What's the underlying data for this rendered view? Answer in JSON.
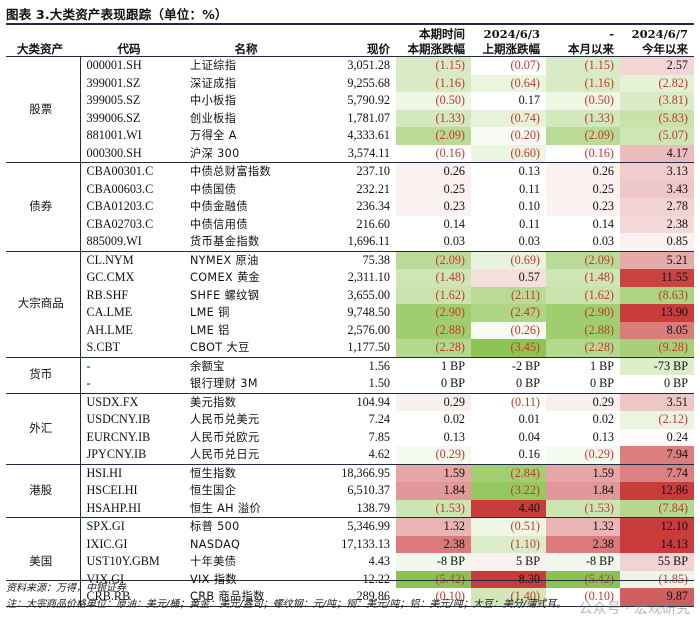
{
  "title": "图表 3.大类资产表现跟踪（单位：%）",
  "header": {
    "r1": [
      "",
      "",
      "",
      "",
      "本期时间",
      "2024/6/3",
      "-",
      "2024/6/7"
    ],
    "r2": [
      "大类资产",
      "代码",
      "名称",
      "现价",
      "本期涨跌幅",
      "上期涨跌幅",
      "本月以来",
      "今年以来"
    ]
  },
  "sections": [
    {
      "category": "股票",
      "rows": [
        {
          "code": "000001.SH",
          "name": "上证综指",
          "price": "3,051.28",
          "cur": "(1.15)",
          "prev": "(0.07)",
          "mtd": "(1.15)",
          "ytd": "2.57"
        },
        {
          "code": "399001.SZ",
          "name": "深证成指",
          "price": "9,255.68",
          "cur": "(1.16)",
          "prev": "(0.64)",
          "mtd": "(1.16)",
          "ytd": "(2.82)"
        },
        {
          "code": "399005.SZ",
          "name": "中小板指",
          "price": "5,790.92",
          "cur": "(0.50)",
          "prev": "0.17",
          "mtd": "(0.50)",
          "ytd": "(3.81)"
        },
        {
          "code": "399006.SZ",
          "name": "创业板指",
          "price": "1,781.07",
          "cur": "(1.33)",
          "prev": "(0.74)",
          "mtd": "(1.33)",
          "ytd": "(5.83)"
        },
        {
          "code": "881001.WI",
          "name": "万得全 A",
          "price": "4,333.61",
          "cur": "(2.09)",
          "prev": "(0.20)",
          "mtd": "(2.09)",
          "ytd": "(5.07)"
        },
        {
          "code": "000300.SH",
          "name": "沪深 300",
          "price": "3,574.11",
          "cur": "(0.16)",
          "prev": "(0.60)",
          "mtd": "(0.16)",
          "ytd": "4.17"
        }
      ]
    },
    {
      "category": "债券",
      "rows": [
        {
          "code": "CBA00301.C",
          "name": "中债总财富指数",
          "price": "237.10",
          "cur": "0.26",
          "prev": "0.13",
          "mtd": "0.26",
          "ytd": "3.13"
        },
        {
          "code": "CBA00603.C",
          "name": "中债国债",
          "price": "232.21",
          "cur": "0.25",
          "prev": "0.11",
          "mtd": "0.25",
          "ytd": "3.43"
        },
        {
          "code": "CBA01203.C",
          "name": "中债金融债",
          "price": "236.34",
          "cur": "0.23",
          "prev": "0.10",
          "mtd": "0.23",
          "ytd": "2.78"
        },
        {
          "code": "CBA02703.C",
          "name": "中债信用债",
          "price": "216.60",
          "cur": "0.14",
          "prev": "0.11",
          "mtd": "0.14",
          "ytd": "2.38"
        },
        {
          "code": "885009.WI",
          "name": "货币基金指数",
          "price": "1,696.11",
          "cur": "0.03",
          "prev": "0.03",
          "mtd": "0.03",
          "ytd": "0.85"
        }
      ]
    },
    {
      "category": "大宗商品",
      "rows": [
        {
          "code": "CL.NYM",
          "name": "NYMEX 原油",
          "price": "75.38",
          "cur": "(2.09)",
          "prev": "(0.69)",
          "mtd": "(2.09)",
          "ytd": "5.21"
        },
        {
          "code": "GC.CMX",
          "name": "COMEX 黄金",
          "price": "2,311.10",
          "cur": "(1.48)",
          "prev": "0.57",
          "mtd": "(1.48)",
          "ytd": "11.55"
        },
        {
          "code": "RB.SHF",
          "name": "SHFE 螺纹钢",
          "price": "3,655.00",
          "cur": "(1.62)",
          "prev": "(2.11)",
          "mtd": "(1.62)",
          "ytd": "(8.63)"
        },
        {
          "code": "CA.LME",
          "name": "LME 铜",
          "price": "9,748.50",
          "cur": "(2.90)",
          "prev": "(2.47)",
          "mtd": "(2.90)",
          "ytd": "13.90"
        },
        {
          "code": "AH.LME",
          "name": "LME 铝",
          "price": "2,576.00",
          "cur": "(2.88)",
          "prev": "(0.26)",
          "mtd": "(2.88)",
          "ytd": "8.05"
        },
        {
          "code": "S.CBT",
          "name": "CBOT 大豆",
          "price": "1,177.50",
          "cur": "(2.28)",
          "prev": "(3.45)",
          "mtd": "(2.28)",
          "ytd": "(9.28)"
        }
      ]
    },
    {
      "category": "货币",
      "rows": [
        {
          "code": "-",
          "name": "余额宝",
          "price": "1.56",
          "cur": "1 BP",
          "prev": "-2 BP",
          "mtd": "1 BP",
          "ytd": "-73 BP"
        },
        {
          "code": "-",
          "name": "银行理财 3M",
          "price": "1.50",
          "cur": "0 BP",
          "prev": "0 BP",
          "mtd": "0 BP",
          "ytd": "0 BP"
        }
      ]
    },
    {
      "category": "外汇",
      "rows": [
        {
          "code": "USDX.FX",
          "name": "美元指数",
          "price": "104.94",
          "cur": "0.29",
          "prev": "(0.11)",
          "mtd": "0.29",
          "ytd": "3.51"
        },
        {
          "code": "USDCNY.IB",
          "name": "人民币兑美元",
          "price": "7.24",
          "cur": "0.02",
          "prev": "0.01",
          "mtd": "0.02",
          "ytd": "(2.12)"
        },
        {
          "code": "EURCNY.IB",
          "name": "人民币兑欧元",
          "price": "7.85",
          "cur": "0.13",
          "prev": "0.04",
          "mtd": "0.13",
          "ytd": "0.24"
        },
        {
          "code": "JPYCNY.IB",
          "name": "人民币兑日元",
          "price": "4.62",
          "cur": "(0.29)",
          "prev": "0.16",
          "mtd": "(0.29)",
          "ytd": "7.94"
        }
      ]
    },
    {
      "category": "港股",
      "rows": [
        {
          "code": "HSI.HI",
          "name": "恒生指数",
          "price": "18,366.95",
          "cur": "1.59",
          "prev": "(2.84)",
          "mtd": "1.59",
          "ytd": "7.74"
        },
        {
          "code": "HSCEI.HI",
          "name": "恒生国企",
          "price": "6,510.37",
          "cur": "1.84",
          "prev": "(3.22)",
          "mtd": "1.84",
          "ytd": "12.86"
        },
        {
          "code": "HSAHP.HI",
          "name": "恒生 AH 溢价",
          "price": "138.79",
          "cur": "(1.53)",
          "prev": "4.40",
          "mtd": "(1.53)",
          "ytd": "(7.84)"
        }
      ]
    },
    {
      "category": "美国",
      "rows": [
        {
          "code": "SPX.GI",
          "name": "标普 500",
          "price": "5,346.99",
          "cur": "1.32",
          "prev": "(0.51)",
          "mtd": "1.32",
          "ytd": "12.10"
        },
        {
          "code": "IXIC.GI",
          "name": "NASDAQ",
          "price": "17,133.13",
          "cur": "2.38",
          "prev": "(1.10)",
          "mtd": "2.38",
          "ytd": "14.13"
        },
        {
          "code": "UST10Y.GBM",
          "name": "十年美债",
          "price": "4.43",
          "cur": "-8 BP",
          "prev": "5 BP",
          "mtd": "-8 BP",
          "ytd": "55 BP"
        },
        {
          "code": "VIX.GI",
          "name": "VIX 指数",
          "price": "12.22",
          "cur": "(5.42)",
          "prev": "8.30",
          "mtd": "(5.42)",
          "ytd": "(1.85)"
        },
        {
          "code": "CRB.RB",
          "name": "CRB 商品指数",
          "price": "289.86",
          "cur": "(0.10)",
          "prev": "(1.40)",
          "mtd": "(0.10)",
          "ytd": "9.87"
        }
      ]
    }
  ],
  "footer": {
    "source": "资料来源：万得，中银证券",
    "note": "注：大宗商品价格单位：原油：美元/桶；黄金：美元/盎司；螺纹钢：元/吨；铜：美元/吨；铝：美元/吨；大豆：美分/蒲式耳。"
  },
  "watermark": "公众号 · 宏观研究"
}
